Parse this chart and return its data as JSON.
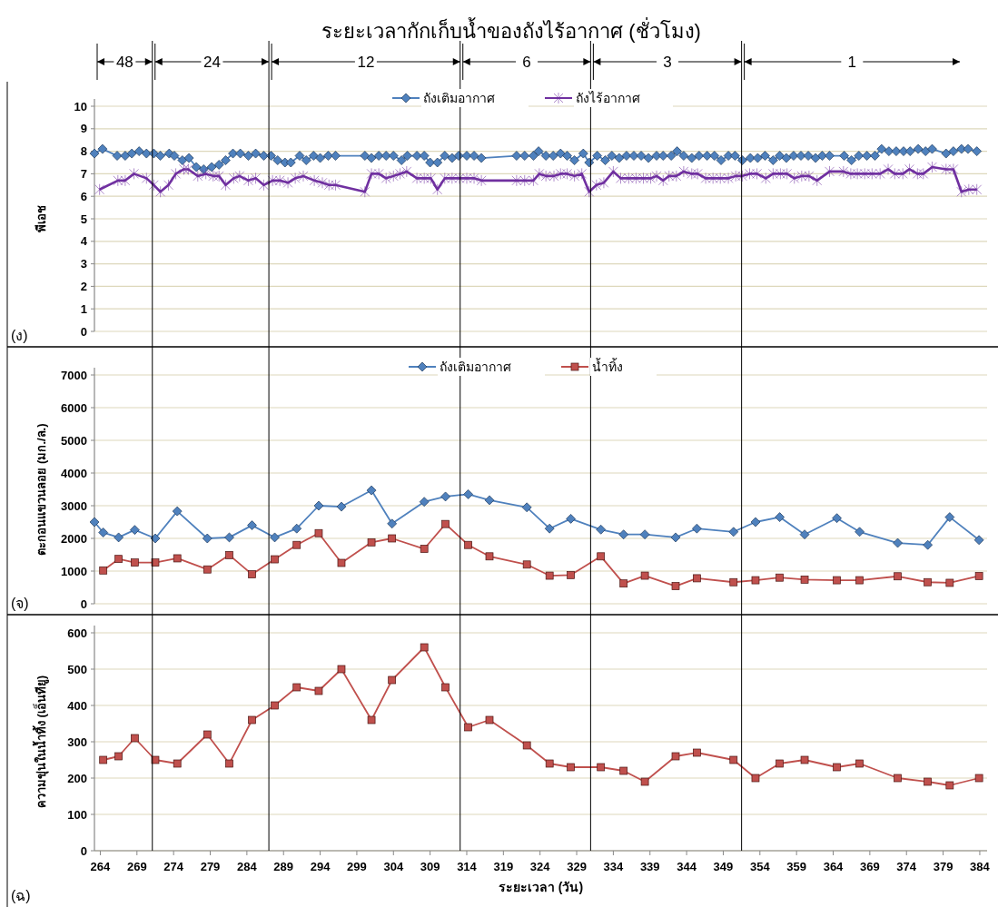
{
  "chart_data": [
    {
      "type": "line",
      "title": "ระยะเวลากักเก็บน้ำของถังไร้อากาศ (ชั่วโมง)",
      "ylabel": "พีเอช",
      "annotations": [
        "48",
        "24",
        "12",
        "6",
        "3",
        "1",
        "(ง)"
      ],
      "xlim": [
        263.2,
        385
      ],
      "ylim": [
        0,
        10
      ],
      "yticks": [
        0,
        1,
        2,
        3,
        4,
        5,
        6,
        7,
        8,
        9,
        10
      ],
      "tick_labels": "y",
      "grid": "y",
      "legend": "top",
      "ref_lines": [
        {
          "axis": "x",
          "value": 271.1
        },
        {
          "axis": "x",
          "value": 287.0
        },
        {
          "axis": "x",
          "value": 313.1
        },
        {
          "axis": "x",
          "value": 330.9
        },
        {
          "axis": "x",
          "value": 351.5
        }
      ],
      "series": [
        {
          "name": "ถังเติมอากาศ",
          "color": "#4f81bd",
          "marker": "diamond",
          "x": [
            263.2,
            264.3,
            266.3,
            267.4,
            268.3,
            269.3,
            270.3,
            271.3,
            272.2,
            273.4,
            274.1,
            275.2,
            276.1,
            277.1,
            278.1,
            279.2,
            280.2,
            281.1,
            282.1,
            283.1,
            284.2,
            285.2,
            286.3,
            287.3,
            288.2,
            289.2,
            290.0,
            291.2,
            292.1,
            293.1,
            294.0,
            295.1,
            296.1,
            300.1,
            301.0,
            302.0,
            303.0,
            304.0,
            305.1,
            305.9,
            307.2,
            308.2,
            309.0,
            310.0,
            311.0,
            312.0,
            312.9,
            314.0,
            315.0,
            316.0,
            320.8,
            321.9,
            323.1,
            323.8,
            324.8,
            325.8,
            326.8,
            327.7,
            328.7,
            329.9,
            330.7,
            331.8,
            332.9,
            333.8,
            334.8,
            335.8,
            336.8,
            337.8,
            338.8,
            339.9,
            340.8,
            341.9,
            342.7,
            343.6,
            344.7,
            345.7,
            346.8,
            347.8,
            348.7,
            349.7,
            350.6,
            351.6,
            352.7,
            353.7,
            354.7,
            355.8,
            356.7,
            357.6,
            358.6,
            359.6,
            360.6,
            361.6,
            362.5,
            363.5,
            365.5,
            366.5,
            367.5,
            368.6,
            369.7,
            370.6,
            371.6,
            372.6,
            373.6,
            374.5,
            375.6,
            376.6,
            377.5,
            379.4,
            380.4,
            381.5,
            382.4,
            383.6
          ],
          "values": [
            7.9,
            8.1,
            7.8,
            7.8,
            7.9,
            8.0,
            7.9,
            7.9,
            7.8,
            7.9,
            7.8,
            7.6,
            7.7,
            7.3,
            7.2,
            7.3,
            7.4,
            7.6,
            7.9,
            7.9,
            7.8,
            7.9,
            7.8,
            7.8,
            7.6,
            7.5,
            7.5,
            7.8,
            7.6,
            7.8,
            7.7,
            7.8,
            7.8,
            7.8,
            7.7,
            7.8,
            7.8,
            7.8,
            7.6,
            7.8,
            7.8,
            7.8,
            7.5,
            7.5,
            7.8,
            7.7,
            7.8,
            7.8,
            7.8,
            7.7,
            7.8,
            7.8,
            7.8,
            8.0,
            7.8,
            7.8,
            7.9,
            7.8,
            7.6,
            7.9,
            7.5,
            7.8,
            7.6,
            7.8,
            7.7,
            7.8,
            7.8,
            7.8,
            7.7,
            7.8,
            7.8,
            7.8,
            8.0,
            7.8,
            7.7,
            7.8,
            7.8,
            7.8,
            7.6,
            7.8,
            7.8,
            7.6,
            7.7,
            7.7,
            7.8,
            7.6,
            7.8,
            7.7,
            7.8,
            7.8,
            7.8,
            7.7,
            7.8,
            7.8,
            7.8,
            7.6,
            7.8,
            7.8,
            7.8,
            8.1,
            8.0,
            8.0,
            8.0,
            8.0,
            8.1,
            8.0,
            8.1,
            7.9,
            8.0,
            8.1,
            8.1,
            8.0
          ]
        },
        {
          "name": "ถังไร้อากาศ",
          "color": "#7030a0",
          "marker": "cross",
          "x": [
            263.9,
            266.4,
            267.4,
            268.6,
            270.3,
            271.3,
            272.2,
            273.3,
            274.3,
            275.4,
            276.0,
            277.3,
            278.4,
            279.4,
            280.2,
            281.1,
            282.2,
            283.0,
            284.2,
            285.2,
            286.3,
            287.5,
            288.5,
            289.6,
            290.6,
            291.7,
            293.2,
            294.3,
            295.2,
            296.1,
            300.1,
            301.0,
            302.0,
            303.0,
            304.0,
            304.9,
            305.8,
            307.2,
            308.2,
            309.1,
            310.0,
            311.0,
            312.0,
            313.0,
            314.0,
            315.0,
            316.0,
            320.8,
            321.9,
            323.1,
            323.9,
            324.8,
            325.9,
            326.8,
            327.7,
            328.7,
            329.7,
            330.7,
            331.7,
            332.7,
            334.0,
            335.0,
            336.1,
            337.1,
            338.1,
            339.1,
            339.9,
            340.8,
            341.6,
            342.6,
            343.6,
            344.7,
            345.5,
            346.6,
            347.6,
            348.6,
            349.7,
            350.7,
            351.6,
            352.6,
            353.6,
            354.8,
            355.8,
            356.8,
            357.7,
            358.7,
            359.7,
            360.7,
            361.8,
            363.5,
            365.4,
            366.4,
            367.3,
            368.3,
            369.3,
            370.4,
            371.5,
            372.4,
            373.5,
            374.4,
            375.5,
            376.3,
            377.5,
            379.4,
            380.4,
            381.5,
            382.5,
            383.6
          ],
          "values": [
            6.3,
            6.7,
            6.7,
            7.0,
            6.8,
            6.5,
            6.2,
            6.5,
            7.0,
            7.2,
            7.2,
            6.9,
            7.0,
            6.9,
            6.9,
            6.5,
            6.8,
            6.9,
            6.7,
            6.8,
            6.5,
            6.7,
            6.7,
            6.6,
            6.8,
            6.9,
            6.7,
            6.6,
            6.5,
            6.5,
            6.2,
            7.0,
            7.0,
            6.8,
            6.9,
            7.0,
            7.1,
            6.8,
            6.8,
            6.8,
            6.3,
            6.8,
            6.8,
            6.8,
            6.8,
            6.8,
            6.7,
            6.7,
            6.7,
            6.7,
            7.0,
            6.9,
            6.9,
            7.0,
            7.0,
            6.9,
            7.0,
            6.2,
            6.5,
            6.6,
            7.1,
            6.8,
            6.8,
            6.8,
            6.8,
            6.8,
            6.9,
            6.7,
            6.9,
            6.9,
            7.1,
            7.0,
            7.0,
            6.8,
            6.8,
            6.8,
            6.8,
            6.9,
            6.9,
            7.0,
            7.0,
            6.8,
            7.0,
            7.0,
            7.0,
            6.8,
            6.9,
            6.9,
            6.7,
            7.1,
            7.1,
            7.0,
            7.0,
            7.0,
            7.0,
            7.0,
            7.2,
            7.0,
            7.0,
            7.2,
            7.0,
            7.0,
            7.3,
            7.2,
            7.2,
            6.2,
            6.3,
            6.3
          ]
        }
      ]
    },
    {
      "type": "line",
      "ylabel": "ตะกอนแขวนลอย (มก./ล.)",
      "annotations": [
        "(จ)"
      ],
      "xlim": [
        263.2,
        385
      ],
      "ylim": [
        0,
        7000
      ],
      "yticks": [
        0,
        1000,
        2000,
        3000,
        4000,
        5000,
        6000,
        7000
      ],
      "tick_labels": "y",
      "grid": "y",
      "legend": "top",
      "ref_lines": [
        {
          "axis": "x",
          "value": 271.1
        },
        {
          "axis": "x",
          "value": 287.0
        },
        {
          "axis": "x",
          "value": 313.1
        },
        {
          "axis": "x",
          "value": 330.9
        },
        {
          "axis": "x",
          "value": 351.5
        }
      ],
      "series": [
        {
          "name": "ถังเติมอากาศ",
          "color": "#4f81bd",
          "marker": "diamond",
          "x": [
            263.2,
            264.4,
            266.5,
            268.7,
            271.5,
            274.5,
            278.6,
            281.6,
            284.7,
            287.8,
            290.8,
            293.8,
            296.9,
            301.0,
            303.8,
            308.2,
            311.1,
            314.2,
            317.1,
            322.2,
            325.3,
            328.2,
            332.3,
            335.4,
            338.3,
            342.5,
            345.4,
            350.4,
            353.4,
            356.7,
            360.1,
            364.5,
            367.6,
            372.8,
            376.9,
            379.9,
            383.9
          ],
          "values": [
            2500,
            2180,
            2030,
            2260,
            2000,
            2830,
            2000,
            2030,
            2400,
            2030,
            2300,
            3000,
            2970,
            3470,
            2450,
            3120,
            3280,
            3350,
            3170,
            2950,
            2300,
            2600,
            2270,
            2120,
            2120,
            2030,
            2300,
            2200,
            2500,
            2650,
            2120,
            2620,
            2200,
            1860,
            1800,
            2650,
            1950
          ]
        },
        {
          "name": "น้ำทิ้ง",
          "color": "#c0504d",
          "marker": "square",
          "x": [
            264.4,
            266.5,
            268.7,
            271.5,
            274.5,
            278.6,
            281.6,
            284.7,
            287.8,
            290.8,
            293.8,
            296.9,
            301.0,
            303.8,
            308.2,
            311.1,
            314.2,
            317.1,
            322.2,
            325.3,
            328.2,
            332.3,
            335.4,
            338.3,
            342.5,
            345.4,
            350.4,
            353.4,
            356.7,
            360.1,
            364.5,
            367.6,
            372.8,
            376.9,
            379.9,
            383.9
          ],
          "values": [
            1020,
            1370,
            1260,
            1260,
            1390,
            1050,
            1490,
            900,
            1360,
            1800,
            2160,
            1250,
            1880,
            2000,
            1680,
            2440,
            1800,
            1450,
            1200,
            860,
            880,
            1450,
            620,
            860,
            540,
            780,
            660,
            720,
            800,
            740,
            720,
            720,
            840,
            660,
            640,
            850
          ]
        }
      ]
    },
    {
      "type": "line",
      "ylabel": "ความขุ่นในน้ำทิ้ง (เอ็นทียู)",
      "xlabel": "ระยะเวลา (วัน)",
      "annotations": [
        "(ฉ)"
      ],
      "xlim": [
        263.2,
        385
      ],
      "ylim": [
        0,
        600
      ],
      "yticks": [
        0,
        100,
        200,
        300,
        400,
        500,
        600
      ],
      "xticks": [
        264,
        269,
        274,
        279,
        284,
        289,
        294,
        299,
        304,
        309,
        314,
        319,
        324,
        329,
        334,
        339,
        344,
        349,
        354,
        359,
        364,
        369,
        374,
        379,
        384
      ],
      "grid": "y",
      "ref_lines": [
        {
          "axis": "x",
          "value": 271.1
        },
        {
          "axis": "x",
          "value": 287.0
        },
        {
          "axis": "x",
          "value": 313.1
        },
        {
          "axis": "x",
          "value": 330.9
        },
        {
          "axis": "x",
          "value": 351.5
        }
      ],
      "series": [
        {
          "color": "#c0504d",
          "marker": "square",
          "x": [
            264.4,
            266.5,
            268.7,
            271.5,
            274.5,
            278.6,
            281.6,
            284.7,
            287.8,
            290.8,
            293.8,
            296.9,
            301.0,
            303.8,
            308.2,
            311.1,
            314.2,
            317.1,
            322.2,
            325.3,
            328.2,
            332.3,
            335.4,
            338.3,
            342.5,
            345.4,
            350.4,
            353.4,
            356.7,
            360.1,
            364.5,
            367.6,
            372.8,
            376.9,
            379.9,
            383.9
          ],
          "values": [
            250,
            260,
            310,
            250,
            240,
            320,
            240,
            360,
            400,
            450,
            440,
            500,
            360,
            470,
            560,
            450,
            340,
            360,
            290,
            240,
            230,
            230,
            220,
            190,
            260,
            270,
            250,
            200,
            240,
            250,
            230,
            240,
            200,
            190,
            180,
            200
          ]
        }
      ]
    }
  ]
}
